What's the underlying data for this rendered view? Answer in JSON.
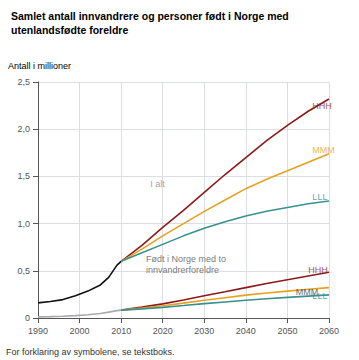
{
  "chart_data": {
    "type": "line",
    "title": "Samlet antall innvandrere og personer født i Norge med\nutenlandsfødte foreldre",
    "y_label": "Antall i millioner",
    "footnote": "For forklaring av symbolene, se tekstboks.",
    "xlim": [
      1990,
      2060
    ],
    "ylim": [
      0,
      2.5
    ],
    "xticks": [
      1990,
      2000,
      2010,
      2020,
      2030,
      2040,
      2050,
      2060
    ],
    "yticks": [
      0,
      {
        "value": 0.5,
        "label": "0,5"
      },
      {
        "value": 1.0,
        "label": "1,0"
      },
      {
        "value": 1.5,
        "label": "1,5"
      },
      {
        "value": 2.0,
        "label": "2,0"
      },
      {
        "value": 2.5,
        "label": "2,5"
      }
    ],
    "grid": true,
    "series": [
      {
        "color": "#111111",
        "x": [
          1990,
          1993,
          1996,
          1999,
          2002,
          2005,
          2007,
          2009,
          2010
        ],
        "values": [
          0.16,
          0.175,
          0.195,
          0.235,
          0.285,
          0.35,
          0.43,
          0.56,
          0.6
        ]
      },
      {
        "color": "#8b1a1a",
        "x": [
          2010,
          2015,
          2020,
          2025,
          2030,
          2035,
          2040,
          2045,
          2050,
          2055,
          2060
        ],
        "values": [
          0.6,
          0.77,
          0.96,
          1.14,
          1.33,
          1.52,
          1.7,
          1.88,
          2.04,
          2.19,
          2.32
        ]
      },
      {
        "color": "#e8a020",
        "x": [
          2010,
          2015,
          2020,
          2025,
          2030,
          2035,
          2040,
          2045,
          2050,
          2055,
          2060
        ],
        "values": [
          0.6,
          0.73,
          0.87,
          1.0,
          1.13,
          1.25,
          1.37,
          1.47,
          1.56,
          1.65,
          1.74
        ]
      },
      {
        "color": "#3a9090",
        "x": [
          2010,
          2015,
          2020,
          2025,
          2030,
          2035,
          2040,
          2045,
          2050,
          2055,
          2060
        ],
        "values": [
          0.6,
          0.69,
          0.78,
          0.87,
          0.95,
          1.02,
          1.08,
          1.13,
          1.17,
          1.21,
          1.24
        ]
      },
      {
        "color": "#aaaaaa",
        "x": [
          1990,
          1993,
          1996,
          1999,
          2002,
          2005,
          2007,
          2009,
          2010
        ],
        "values": [
          0.012,
          0.015,
          0.019,
          0.025,
          0.034,
          0.048,
          0.062,
          0.078,
          0.083
        ]
      },
      {
        "color": "#8b1a1a",
        "x": [
          2010,
          2015,
          2020,
          2025,
          2030,
          2035,
          2040,
          2045,
          2050,
          2055,
          2060
        ],
        "values": [
          0.083,
          0.115,
          0.15,
          0.19,
          0.235,
          0.278,
          0.322,
          0.365,
          0.405,
          0.445,
          0.485
        ]
      },
      {
        "color": "#e8a020",
        "x": [
          2010,
          2015,
          2020,
          2025,
          2030,
          2035,
          2040,
          2045,
          2050,
          2055,
          2060
        ],
        "values": [
          0.083,
          0.105,
          0.13,
          0.158,
          0.188,
          0.215,
          0.242,
          0.265,
          0.285,
          0.305,
          0.322
        ]
      },
      {
        "color": "#3a9090",
        "x": [
          2010,
          2015,
          2020,
          2025,
          2030,
          2035,
          2040,
          2045,
          2050,
          2055,
          2060
        ],
        "values": [
          0.083,
          0.097,
          0.113,
          0.132,
          0.152,
          0.17,
          0.188,
          0.204,
          0.218,
          0.232,
          0.245
        ]
      }
    ],
    "annotations": [
      {
        "text": "HHH",
        "x": 2056,
        "y": 2.25,
        "color": "#8b1a1a"
      },
      {
        "text": "MMM",
        "x": 2056,
        "y": 1.78,
        "color": "#e8a020"
      },
      {
        "text": "LLL",
        "x": 2056,
        "y": 1.28,
        "color": "#3a9090"
      },
      {
        "text": "HHH",
        "x": 2055,
        "y": 0.505,
        "color": "#8b1a1a"
      },
      {
        "text": "MMM",
        "x": 2052,
        "y": 0.275,
        "color": "#444444"
      },
      {
        "text": "LLL",
        "x": 2056,
        "y": 0.235,
        "color": "#3a9090"
      },
      {
        "text": "I alt",
        "x": 2017,
        "y": 1.42,
        "color": "#888888"
      },
      {
        "text": "Født i Norge med to\ninnvandrerforeldre",
        "x": 2016,
        "y": 0.565,
        "color": "#555555"
      }
    ]
  }
}
